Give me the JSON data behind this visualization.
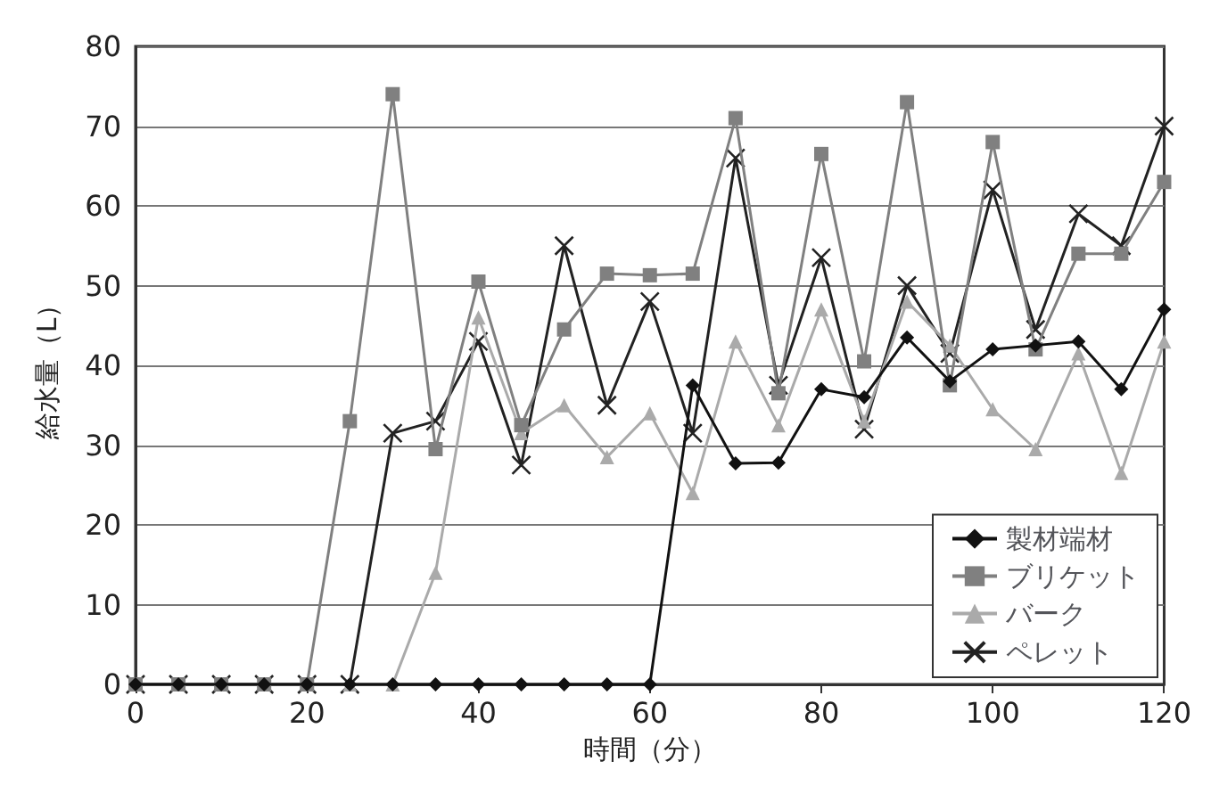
{
  "chart_data": {
    "type": "line",
    "xlabel": "時間（分）",
    "ylabel": "給水量（L）",
    "x": [
      0,
      5,
      10,
      15,
      20,
      25,
      30,
      35,
      40,
      45,
      50,
      55,
      60,
      65,
      70,
      75,
      80,
      85,
      90,
      95,
      100,
      105,
      110,
      115,
      120
    ],
    "xlim": [
      0,
      120
    ],
    "xticks": [
      0,
      20,
      40,
      60,
      80,
      100,
      120
    ],
    "ylim": [
      0,
      80
    ],
    "yticks": [
      0,
      10,
      20,
      30,
      40,
      50,
      60,
      70,
      80
    ],
    "grid": "y",
    "legend": "bottom right",
    "series": [
      {
        "name": "製材端材",
        "color": "#111111",
        "marker": "diamond",
        "values": [
          0,
          0,
          0,
          0,
          0,
          0,
          0,
          0,
          0,
          0,
          0,
          0,
          0,
          37.5,
          27.7,
          27.8,
          37,
          36,
          43.5,
          38,
          42,
          42.5,
          43,
          37,
          47
        ]
      },
      {
        "name": "ブリケット",
        "color": "#808080",
        "marker": "square",
        "values": [
          0,
          0,
          0,
          0,
          0,
          33,
          74,
          29.5,
          50.5,
          32.5,
          44.5,
          51.5,
          51.3,
          51.5,
          71,
          36.5,
          66.5,
          40.5,
          73,
          37.5,
          68,
          42,
          54,
          54,
          63
        ]
      },
      {
        "name": "バーク",
        "color": "#aaaaaa",
        "marker": "triangle",
        "values": [
          0,
          0,
          0,
          0,
          0,
          0,
          0,
          14,
          46,
          31.5,
          35,
          28.5,
          34,
          24,
          43,
          32.5,
          47,
          33,
          48,
          42.5,
          34.5,
          29.5,
          41.5,
          26.5,
          43
        ]
      },
      {
        "name": "ペレット",
        "color": "#222222",
        "marker": "cross",
        "values": [
          0,
          0,
          0,
          0,
          0,
          0,
          31.5,
          33,
          43,
          27.5,
          55,
          35,
          48,
          31.5,
          66,
          37.5,
          53.5,
          32,
          50,
          41.5,
          62,
          44.5,
          59,
          55,
          70
        ]
      }
    ]
  }
}
